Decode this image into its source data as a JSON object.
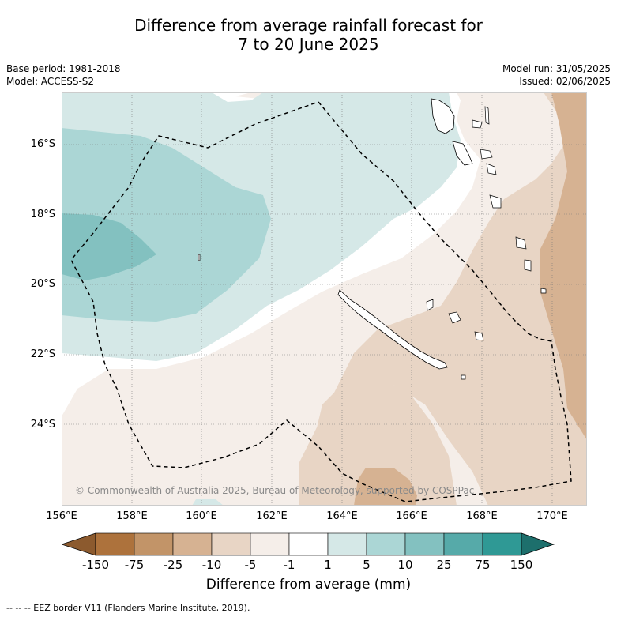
{
  "title_line1": "Difference from average rainfall forecast for",
  "title_line2": "7 to 20 June 2025",
  "base_period": "Base period: 1981-2018",
  "model": "Model: ACCESS-S2",
  "model_run": "Model run: 31/05/2025",
  "issued": "Issued: 02/06/2025",
  "copyright": "© Commonwealth of Australia 2025, Bureau of Meteorology, supported by COSPPac",
  "lat_labels": [
    "16°S",
    "18°S",
    "20°S",
    "22°S",
    "24°S"
  ],
  "lon_labels": [
    "156°E",
    "158°E",
    "160°E",
    "162°E",
    "164°E",
    "166°E",
    "168°E",
    "170°E"
  ],
  "colorbar": {
    "ticks": [
      "-150",
      "-75",
      "-25",
      "-10",
      "-5",
      "-1",
      "1",
      "5",
      "10",
      "25",
      "75",
      "150"
    ],
    "colors": [
      "#8c5a2e",
      "#ad723c",
      "#c29468",
      "#d6b292",
      "#e8d5c5",
      "#f5eee9",
      "#ffffff",
      "#d5e8e7",
      "#abd6d5",
      "#83c1c0",
      "#56aaa9",
      "#2f9995",
      "#1d6f6c"
    ],
    "title": "Difference from average (mm)"
  },
  "footnote": "-- -- -- EEZ border V11 (Flanders Marine Institute, 2019)."
}
